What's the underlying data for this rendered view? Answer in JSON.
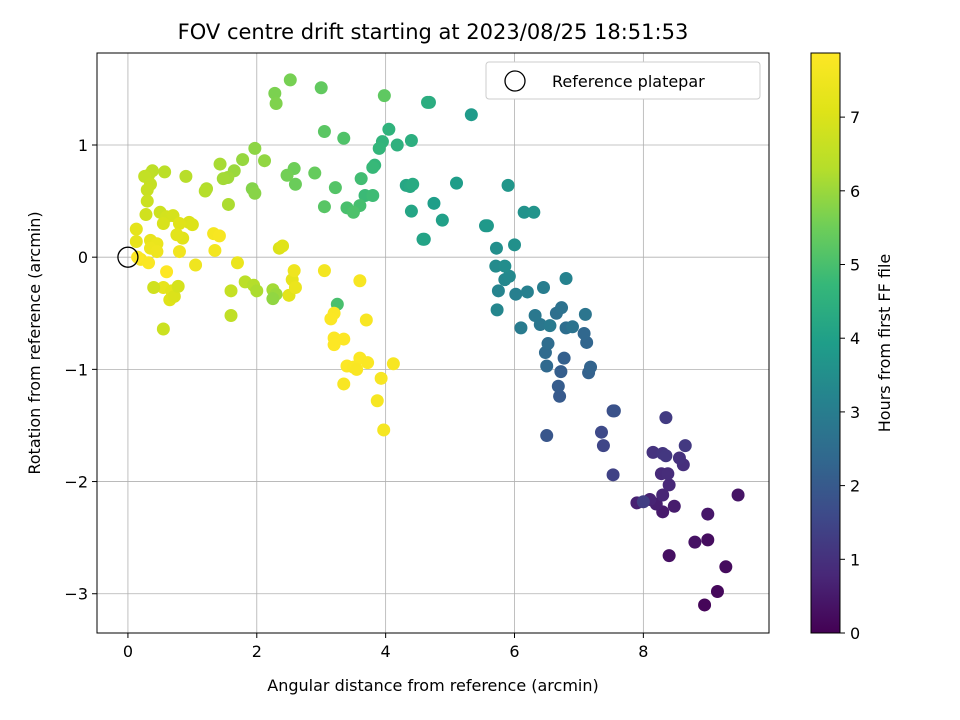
{
  "chart_data": {
    "type": "scatter",
    "title": "FOV centre drift starting at 2023/08/25 18:51:53",
    "xlabel": "Angular distance from reference (arcmin)",
    "ylabel": "Rotation from reference (arcmin)",
    "xlim": [
      -0.48,
      9.95
    ],
    "ylim": [
      -3.35,
      1.82
    ],
    "xticks": [
      0,
      2,
      4,
      6,
      8
    ],
    "yticks": [
      -3,
      -2,
      -1,
      0,
      1
    ],
    "xtick_labels": [
      "0",
      "2",
      "4",
      "6",
      "8"
    ],
    "ytick_labels": [
      "−3",
      "−2",
      "−1",
      "0",
      "1"
    ],
    "grid": true,
    "legend": {
      "position": "top-right",
      "entries": [
        "Reference platepar"
      ]
    },
    "colorbar": {
      "label": "Hours from first FF file",
      "min": 0,
      "max": 7.87,
      "ticks": [
        0,
        1,
        2,
        3,
        4,
        5,
        6,
        7
      ],
      "tick_labels": [
        "0",
        "1",
        "2",
        "3",
        "4",
        "5",
        "6",
        "7"
      ],
      "colormap": "viridis"
    },
    "reference_point": {
      "x": 0,
      "y": 0
    },
    "points": [
      [
        8.95,
        -3.1,
        0.1
      ],
      [
        9.15,
        -2.98,
        0.15
      ],
      [
        9.28,
        -2.76,
        0.2
      ],
      [
        9.0,
        -2.52,
        0.25
      ],
      [
        8.4,
        -2.66,
        0.3
      ],
      [
        8.8,
        -2.54,
        0.35
      ],
      [
        9.47,
        -2.12,
        0.4
      ],
      [
        9.0,
        -2.29,
        0.45
      ],
      [
        8.3,
        -2.27,
        0.5
      ],
      [
        8.48,
        -2.22,
        0.55
      ],
      [
        8.2,
        -2.2,
        0.6
      ],
      [
        7.9,
        -2.19,
        0.65
      ],
      [
        8.1,
        -2.16,
        0.7
      ],
      [
        8.3,
        -2.12,
        0.75
      ],
      [
        8.4,
        -2.03,
        0.8
      ],
      [
        8.28,
        -1.93,
        0.85
      ],
      [
        8.38,
        -1.93,
        0.9
      ],
      [
        8.62,
        -1.85,
        0.95
      ],
      [
        8.56,
        -1.79,
        1.0
      ],
      [
        8.15,
        -1.74,
        1.05
      ],
      [
        8.3,
        -1.75,
        1.1
      ],
      [
        8.35,
        -1.77,
        1.15
      ],
      [
        8.65,
        -1.68,
        1.2
      ],
      [
        8.35,
        -1.43,
        1.25
      ],
      [
        8.0,
        -2.18,
        1.3
      ],
      [
        7.53,
        -1.94,
        1.4
      ],
      [
        7.38,
        -1.68,
        1.5
      ],
      [
        7.35,
        -1.56,
        1.6
      ],
      [
        7.53,
        -1.37,
        1.7
      ],
      [
        7.55,
        -1.37,
        1.8
      ],
      [
        6.5,
        -1.59,
        1.9
      ],
      [
        6.7,
        -1.24,
        2.0
      ],
      [
        6.68,
        -1.15,
        2.05
      ],
      [
        6.72,
        -1.02,
        2.1
      ],
      [
        6.77,
        -0.9,
        2.15
      ],
      [
        7.15,
        -1.03,
        2.2
      ],
      [
        7.18,
        -0.98,
        2.25
      ],
      [
        7.12,
        -0.76,
        2.3
      ],
      [
        7.08,
        -0.68,
        2.35
      ],
      [
        6.5,
        -0.97,
        2.4
      ],
      [
        6.48,
        -0.85,
        2.45
      ],
      [
        6.52,
        -0.77,
        2.5
      ],
      [
        6.8,
        -0.63,
        2.55
      ],
      [
        6.65,
        -0.5,
        2.6
      ],
      [
        6.73,
        -0.45,
        2.65
      ],
      [
        6.9,
        -0.62,
        2.7
      ],
      [
        7.1,
        -0.51,
        2.75
      ],
      [
        6.4,
        -0.6,
        2.8
      ],
      [
        6.32,
        -0.52,
        2.85
      ],
      [
        6.55,
        -0.61,
        2.9
      ],
      [
        6.1,
        -0.63,
        2.95
      ],
      [
        6.45,
        -0.27,
        3.0
      ],
      [
        6.02,
        -0.33,
        3.05
      ],
      [
        6.2,
        -0.31,
        3.1
      ],
      [
        6.8,
        -0.19,
        3.15
      ],
      [
        5.75,
        -0.3,
        3.2
      ],
      [
        5.73,
        -0.47,
        3.25
      ],
      [
        5.85,
        -0.2,
        3.3
      ],
      [
        5.92,
        -0.17,
        3.35
      ],
      [
        5.71,
        -0.08,
        3.4
      ],
      [
        5.85,
        -0.08,
        3.45
      ],
      [
        5.72,
        0.08,
        3.5
      ],
      [
        6.0,
        0.11,
        3.55
      ],
      [
        6.15,
        0.4,
        3.6
      ],
      [
        6.3,
        0.4,
        3.65
      ],
      [
        5.9,
        0.64,
        3.7
      ],
      [
        5.55,
        0.28,
        3.75
      ],
      [
        5.58,
        0.28,
        3.8
      ],
      [
        5.33,
        1.27,
        3.85
      ],
      [
        5.1,
        0.66,
        3.9
      ],
      [
        4.75,
        0.48,
        3.95
      ],
      [
        4.88,
        0.33,
        4.0
      ],
      [
        4.6,
        0.16,
        4.05
      ],
      [
        4.58,
        0.16,
        4.1
      ],
      [
        4.4,
        0.41,
        4.15
      ],
      [
        4.32,
        0.64,
        4.2
      ],
      [
        4.38,
        0.63,
        4.25
      ],
      [
        4.42,
        0.65,
        4.3
      ],
      [
        4.68,
        1.38,
        4.35
      ],
      [
        4.65,
        1.38,
        4.4
      ],
      [
        4.4,
        1.04,
        4.45
      ],
      [
        4.18,
        1.0,
        4.5
      ],
      [
        4.05,
        1.14,
        4.55
      ],
      [
        3.95,
        1.03,
        4.6
      ],
      [
        3.9,
        0.97,
        4.65
      ],
      [
        3.83,
        0.82,
        4.7
      ],
      [
        3.8,
        0.8,
        4.75
      ],
      [
        3.68,
        0.55,
        4.8
      ],
      [
        3.8,
        0.55,
        4.85
      ],
      [
        3.62,
        0.7,
        4.9
      ],
      [
        3.6,
        0.46,
        4.95
      ],
      [
        3.4,
        0.44,
        5.0
      ],
      [
        3.5,
        0.4,
        5.05
      ],
      [
        3.35,
        1.06,
        5.1
      ],
      [
        3.22,
        0.62,
        5.15
      ],
      [
        3.05,
        0.45,
        5.2
      ],
      [
        3.05,
        1.12,
        5.25
      ],
      [
        3.98,
        1.44,
        5.3
      ],
      [
        3.0,
        1.51,
        5.35
      ],
      [
        2.9,
        0.75,
        5.4
      ],
      [
        2.6,
        0.65,
        5.45
      ],
      [
        2.58,
        0.79,
        5.5
      ],
      [
        2.47,
        0.73,
        5.55
      ],
      [
        2.52,
        1.58,
        5.6
      ],
      [
        2.28,
        1.46,
        5.65
      ],
      [
        2.3,
        1.37,
        5.7
      ],
      [
        1.93,
        0.61,
        5.75
      ],
      [
        1.97,
        0.57,
        5.8
      ],
      [
        1.97,
        0.97,
        5.85
      ],
      [
        2.12,
        0.86,
        5.9
      ],
      [
        1.78,
        0.87,
        5.95
      ],
      [
        1.65,
        0.77,
        6.0
      ],
      [
        1.55,
        0.71,
        6.05
      ],
      [
        1.48,
        0.7,
        6.1
      ],
      [
        1.43,
        0.83,
        6.15
      ],
      [
        1.56,
        0.47,
        6.2
      ],
      [
        1.22,
        0.61,
        6.25
      ],
      [
        1.2,
        0.59,
        6.3
      ],
      [
        0.9,
        0.72,
        6.35
      ],
      [
        0.57,
        0.76,
        6.4
      ],
      [
        0.38,
        0.77,
        6.45
      ],
      [
        0.32,
        0.73,
        6.5
      ],
      [
        0.26,
        0.72,
        6.55
      ],
      [
        0.35,
        0.65,
        6.6
      ],
      [
        0.3,
        0.6,
        6.65
      ],
      [
        0.3,
        0.5,
        6.7
      ],
      [
        0.5,
        0.4,
        6.75
      ],
      [
        0.28,
        0.38,
        6.8
      ],
      [
        0.6,
        0.36,
        6.85
      ],
      [
        0.7,
        0.37,
        6.9
      ],
      [
        0.55,
        0.3,
        6.95
      ],
      [
        0.95,
        0.31,
        7.0
      ],
      [
        1.0,
        0.29,
        7.05
      ],
      [
        0.8,
        0.3,
        7.1
      ],
      [
        0.85,
        0.17,
        7.15
      ],
      [
        0.76,
        0.2,
        7.2
      ],
      [
        0.13,
        0.25,
        7.25
      ],
      [
        0.13,
        0.14,
        7.3
      ],
      [
        0.35,
        0.15,
        7.35
      ],
      [
        0.45,
        0.12,
        7.4
      ],
      [
        0.35,
        0.08,
        7.45
      ],
      [
        0.45,
        0.05,
        7.5
      ],
      [
        0.8,
        0.05,
        7.55
      ],
      [
        1.35,
        0.06,
        7.6
      ],
      [
        1.33,
        0.21,
        7.65
      ],
      [
        1.42,
        0.19,
        7.7
      ],
      [
        0.2,
        -0.02,
        7.75
      ],
      [
        0.32,
        -0.05,
        7.8
      ],
      [
        0.15,
        0.0,
        7.85
      ],
      [
        0.6,
        -0.13,
        7.87
      ],
      [
        1.05,
        -0.07,
        7.5
      ],
      [
        1.7,
        -0.05,
        7.4
      ],
      [
        0.55,
        -0.27,
        7.3
      ],
      [
        0.68,
        -0.3,
        7.2
      ],
      [
        0.65,
        -0.38,
        7.1
      ],
      [
        0.72,
        -0.35,
        7.0
      ],
      [
        0.78,
        -0.26,
        6.9
      ],
      [
        0.4,
        -0.27,
        6.8
      ],
      [
        0.55,
        -0.64,
        6.7
      ],
      [
        1.6,
        -0.3,
        6.6
      ],
      [
        1.6,
        -0.52,
        6.5
      ],
      [
        1.82,
        -0.22,
        6.4
      ],
      [
        1.95,
        -0.25,
        6.3
      ],
      [
        2.0,
        -0.3,
        6.2
      ],
      [
        2.25,
        -0.29,
        6.1
      ],
      [
        2.3,
        -0.33,
        6.0
      ],
      [
        2.25,
        -0.37,
        5.9
      ],
      [
        2.35,
        0.08,
        7.0
      ],
      [
        2.4,
        0.1,
        7.1
      ],
      [
        2.5,
        -0.34,
        7.2
      ],
      [
        2.55,
        -0.2,
        7.3
      ],
      [
        2.6,
        -0.27,
        7.4
      ],
      [
        2.58,
        -0.12,
        7.5
      ],
      [
        3.25,
        -0.42,
        5.0
      ],
      [
        3.05,
        -0.12,
        7.6
      ],
      [
        3.6,
        -0.21,
        7.7
      ],
      [
        3.7,
        -0.56,
        7.75
      ],
      [
        3.2,
        -0.5,
        7.8
      ],
      [
        3.15,
        -0.55,
        7.82
      ],
      [
        3.2,
        -0.72,
        7.84
      ],
      [
        3.35,
        -0.73,
        7.86
      ],
      [
        3.2,
        -0.78,
        7.87
      ],
      [
        3.4,
        -0.97,
        7.85
      ],
      [
        3.6,
        -0.9,
        7.83
      ],
      [
        3.72,
        -0.94,
        7.8
      ],
      [
        3.5,
        -0.98,
        7.78
      ],
      [
        3.55,
        -1.0,
        7.76
      ],
      [
        3.35,
        -1.13,
        7.74
      ],
      [
        3.93,
        -1.08,
        7.72
      ],
      [
        4.12,
        -0.95,
        7.7
      ],
      [
        3.87,
        -1.28,
        7.68
      ],
      [
        3.97,
        -1.54,
        7.66
      ]
    ]
  }
}
